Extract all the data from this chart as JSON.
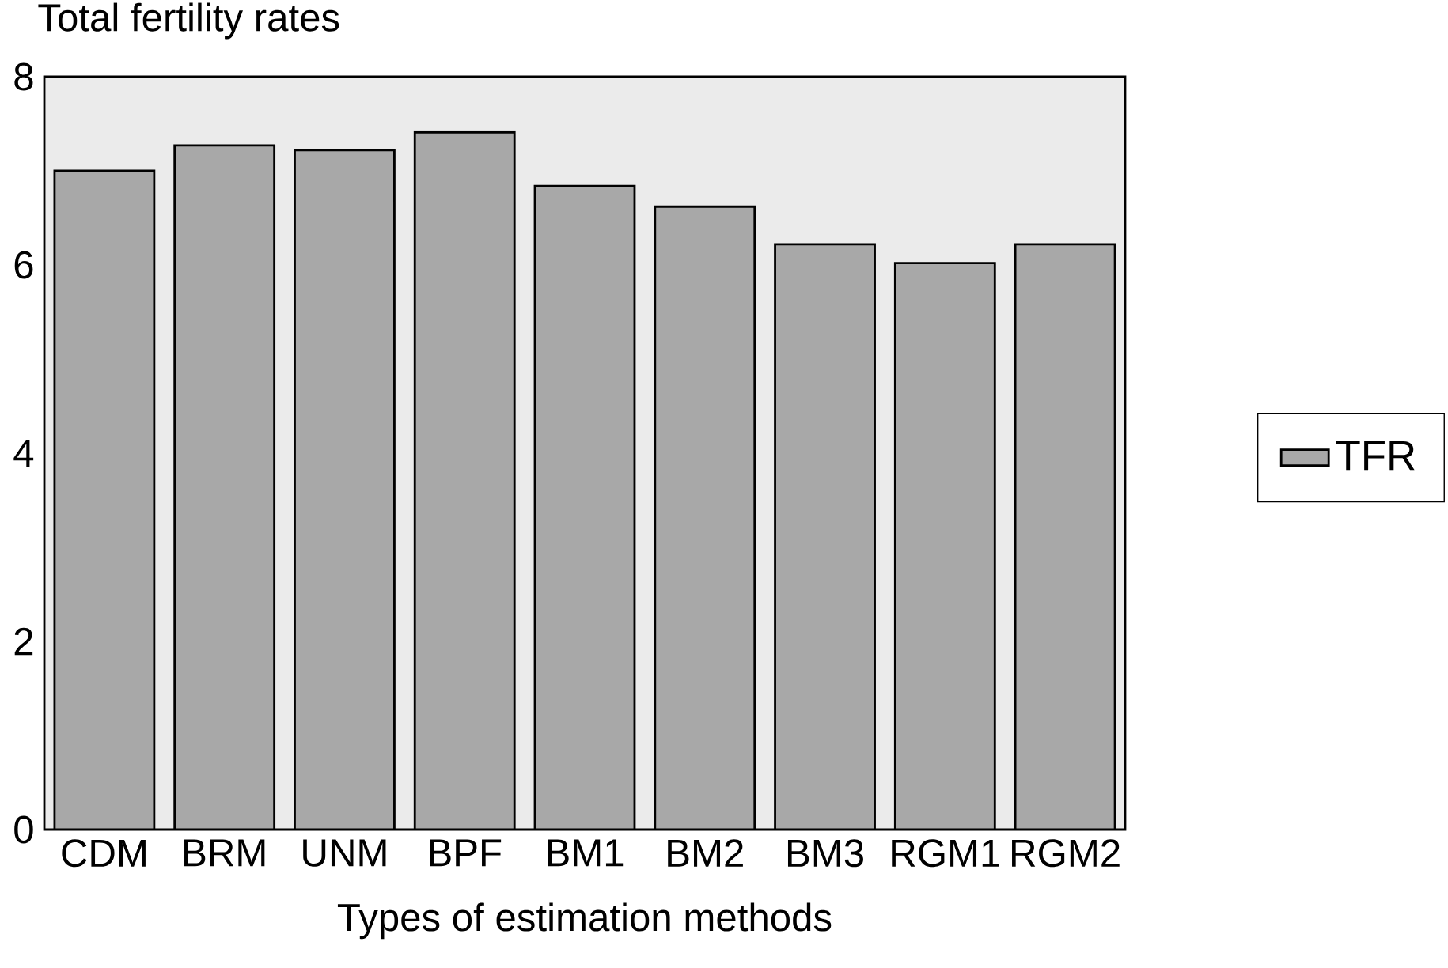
{
  "chart_data": {
    "type": "bar",
    "title": "Total fertility rates",
    "xlabel": "Types of estimation methods",
    "categories": [
      "CDM",
      "BRM",
      "UNM",
      "BPF",
      "BM1",
      "BM2",
      "BM3",
      "RGM1",
      "RGM2"
    ],
    "series": [
      {
        "name": "TFR",
        "color": "#a8a8a8",
        "values": [
          7.0,
          7.27,
          7.22,
          7.41,
          6.84,
          6.62,
          6.22,
          6.02,
          6.22
        ]
      }
    ],
    "ylim": [
      0,
      8
    ],
    "yticks": [
      0,
      2,
      4,
      6,
      8
    ],
    "legend": "right"
  }
}
